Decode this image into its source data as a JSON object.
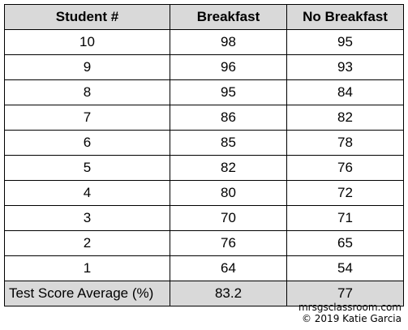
{
  "table": {
    "headers": [
      "Student #",
      "Breakfast",
      "No Breakfast"
    ],
    "rows": [
      [
        "10",
        "98",
        "95"
      ],
      [
        "9",
        "96",
        "93"
      ],
      [
        "8",
        "95",
        "84"
      ],
      [
        "7",
        "86",
        "82"
      ],
      [
        "6",
        "85",
        "78"
      ],
      [
        "5",
        "82",
        "76"
      ],
      [
        "4",
        "80",
        "72"
      ],
      [
        "3",
        "70",
        "71"
      ],
      [
        "2",
        "76",
        "65"
      ],
      [
        "1",
        "64",
        "54"
      ]
    ],
    "footer": [
      "Test Score Average (%)",
      "83.2",
      "77"
    ]
  },
  "credits": {
    "line1": "mrsgsclassroom.com",
    "line2": "© 2019 Katie Garcia"
  },
  "colors": {
    "header_bg": "#d9d9d9",
    "footer_bg": "#d9d9d9",
    "border": "#000000"
  }
}
